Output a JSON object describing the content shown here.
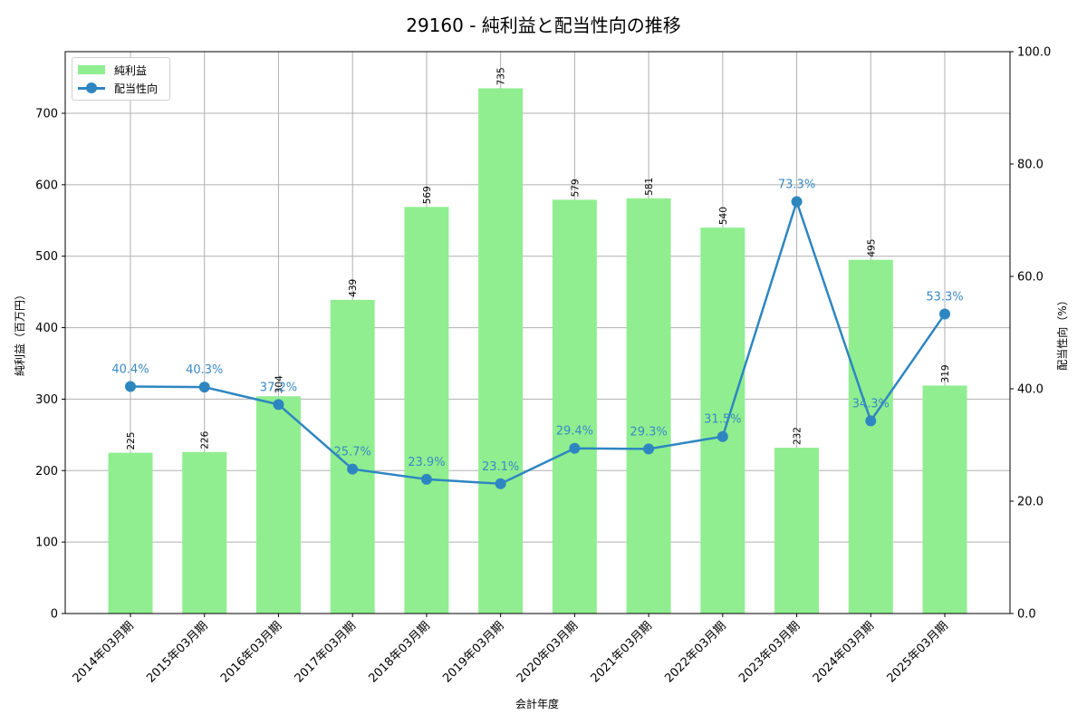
{
  "title": "29160 - 純利益と配当性向の推移",
  "legend": {
    "bar_label": "純利益",
    "line_label": "配当性向"
  },
  "axes": {
    "x_label": "会計年度",
    "y_left_label": "純利益（百万円）",
    "y_right_label": "配当性向（%）",
    "y_left_ticks": [
      "0",
      "100",
      "200",
      "300",
      "400",
      "500",
      "600",
      "700"
    ],
    "y_right_ticks": [
      "0.0",
      "20.0",
      "40.0",
      "60.0",
      "80.0",
      "100.0"
    ]
  },
  "colors": {
    "bar": "#90ee90",
    "line": "#2e86c1",
    "line_label": "#3a8ac4",
    "grid": "#b0b0b0"
  },
  "chart_data": {
    "type": "bar+line",
    "title": "29160 - 純利益と配当性向の推移",
    "xlabel": "会計年度",
    "ylabel": "純利益（百万円）",
    "y2label": "配当性向（%）",
    "categories": [
      "2014年03月期",
      "2015年03月期",
      "2016年03月期",
      "2017年03月期",
      "2018年03月期",
      "2019年03月期",
      "2020年03月期",
      "2021年03月期",
      "2022年03月期",
      "2023年03月期",
      "2024年03月期",
      "2025年03月期"
    ],
    "series": [
      {
        "name": "純利益",
        "type": "bar",
        "axis": "left",
        "values": [
          225,
          226,
          304,
          439,
          569,
          735,
          579,
          581,
          540,
          232,
          495,
          319
        ],
        "labels": [
          "225",
          "226",
          "304",
          "439",
          "569",
          "735",
          "579",
          "581",
          "540",
          "232",
          "495",
          "319"
        ]
      },
      {
        "name": "配当性向",
        "type": "line",
        "axis": "right",
        "values": [
          40.4,
          40.3,
          37.2,
          25.7,
          23.9,
          23.1,
          29.4,
          29.3,
          31.5,
          73.3,
          34.3,
          53.3
        ],
        "labels": [
          "40.4%",
          "40.3%",
          "37.2%",
          "25.7%",
          "23.9%",
          "23.1%",
          "29.4%",
          "29.3%",
          "31.5%",
          "73.3%",
          "34.3%",
          "53.3%"
        ]
      }
    ],
    "ylim": [
      0,
      785
    ],
    "y2lim": [
      0,
      100
    ],
    "grid": true,
    "legend_position": "upper left"
  }
}
